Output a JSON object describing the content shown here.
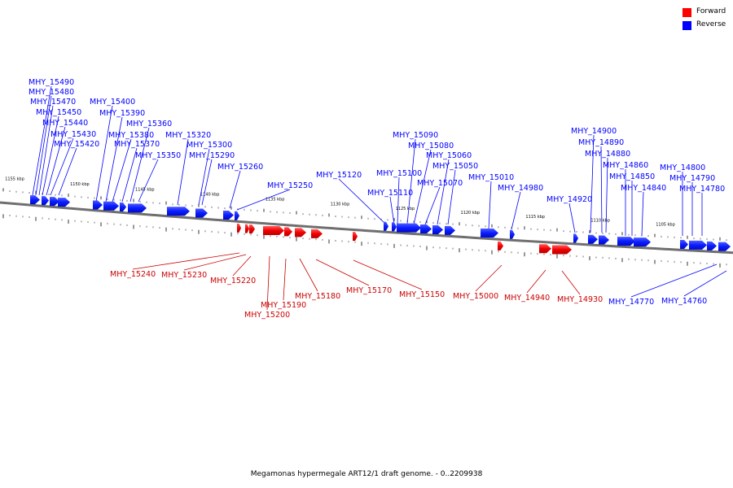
{
  "legend": [
    {
      "label": "Forward",
      "color": "#ff0000"
    },
    {
      "label": "Reverse",
      "color": "#0000ff"
    }
  ],
  "caption": "Megamonas hypermegale ART12/1 draft genome. - 0..2209938",
  "axis": {
    "unit": "kbp",
    "kbp_ticks": [
      {
        "kbp": 1155,
        "label": "1155 kbp"
      },
      {
        "kbp": 1150,
        "label": "1150 kbp"
      },
      {
        "kbp": 1145,
        "label": "1145 kbp"
      },
      {
        "kbp": 1140,
        "label": "1140 kbp"
      },
      {
        "kbp": 1135,
        "label": "1135 kbp"
      },
      {
        "kbp": 1130,
        "label": "1130 kbp"
      },
      {
        "kbp": 1125,
        "label": "1125 kbp"
      },
      {
        "kbp": 1120,
        "label": "1120 kbp"
      },
      {
        "kbp": 1115,
        "label": "1115 kbp"
      },
      {
        "kbp": 1110,
        "label": "1110 kbp"
      },
      {
        "kbp": 1105,
        "label": "1105 kbp"
      }
    ]
  },
  "genes": {
    "reverse": [
      "MHY_15490",
      "MHY_15480",
      "MHY_15470",
      "MHY_15450",
      "MHY_15440",
      "MHY_15430",
      "MHY_15420",
      "MHY_15400",
      "MHY_15390",
      "MHY_15380",
      "MHY_15370",
      "MHY_15360",
      "MHY_15350",
      "MHY_15320",
      "MHY_15300",
      "MHY_15290",
      "MHY_15260",
      "MHY_15250",
      "MHY_15120",
      "MHY_15110",
      "MHY_15100",
      "MHY_15090",
      "MHY_15080",
      "MHY_15070",
      "MHY_15060",
      "MHY_15050",
      "MHY_15010",
      "MHY_14980",
      "MHY_14920",
      "MHY_14900",
      "MHY_14890",
      "MHY_14880",
      "MHY_14860",
      "MHY_14850",
      "MHY_14840",
      "MHY_14800",
      "MHY_14790",
      "MHY_14780",
      "MHY_14770",
      "MHY_14760"
    ],
    "forward": [
      "MHY_15240",
      "MHY_15230",
      "MHY_15220",
      "MHY_15200",
      "MHY_15190",
      "MHY_15180",
      "MHY_15170",
      "MHY_15150",
      "MHY_15000",
      "MHY_14940",
      "MHY_14930"
    ]
  }
}
